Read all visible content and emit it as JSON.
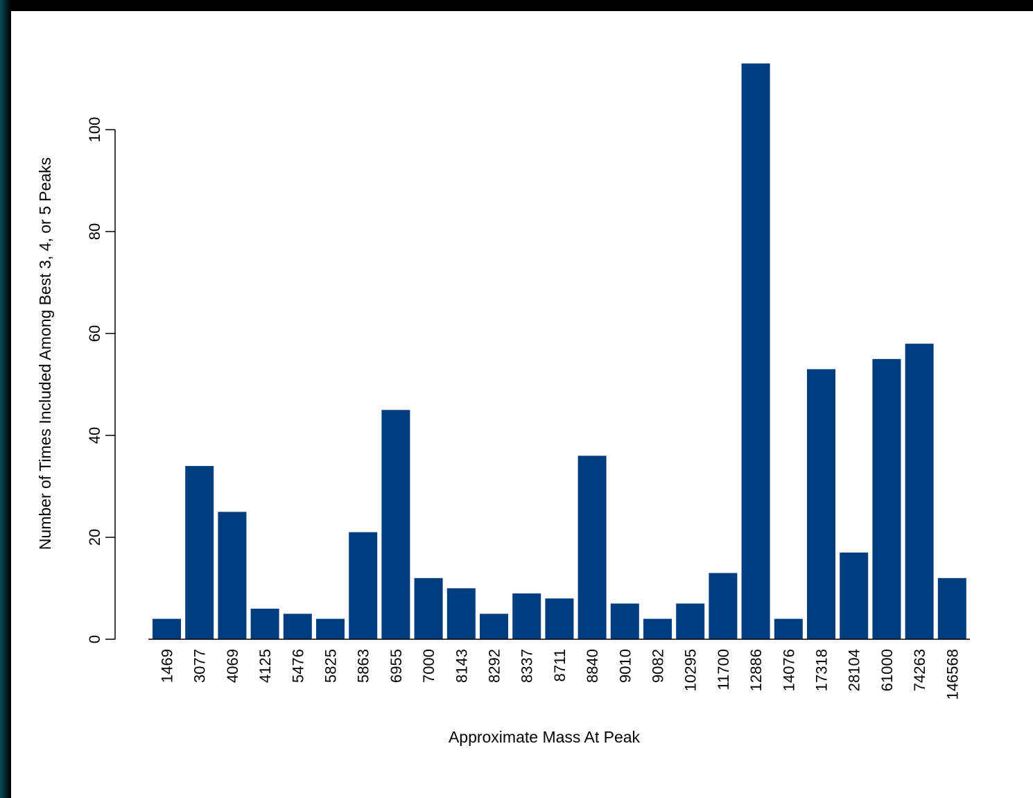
{
  "colors": {
    "bar": "#003d7e",
    "background": "#ffffff",
    "axis": "#000000"
  },
  "chart_data": {
    "type": "bar",
    "title": "",
    "xlabel": "Approximate Mass At Peak",
    "ylabel": "Number of Times Included Among Best 3, 4, or 5 Peaks",
    "categories": [
      "1469",
      "3077",
      "4069",
      "4125",
      "5476",
      "5825",
      "5863",
      "6955",
      "7000",
      "8143",
      "8292",
      "8337",
      "8711",
      "8840",
      "9010",
      "9082",
      "10295",
      "11700",
      "12886",
      "14076",
      "17318",
      "28104",
      "61000",
      "74263",
      "146568"
    ],
    "values": [
      4,
      34,
      25,
      6,
      5,
      4,
      21,
      45,
      12,
      10,
      5,
      9,
      8,
      36,
      7,
      4,
      7,
      13,
      113,
      4,
      53,
      17,
      55,
      58,
      12
    ],
    "ylim": [
      0,
      113
    ],
    "yticks": [
      0,
      20,
      40,
      60,
      80,
      100
    ],
    "grid": false,
    "legend": "none"
  }
}
